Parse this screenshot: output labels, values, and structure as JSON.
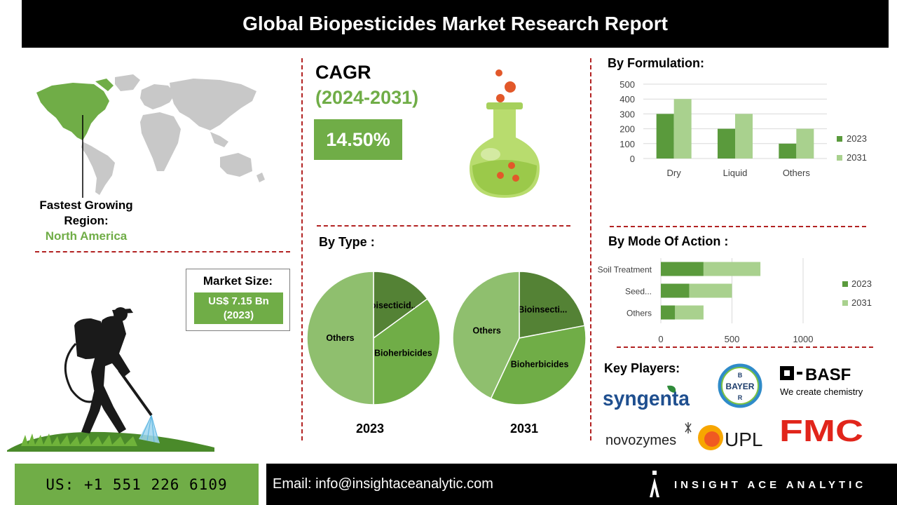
{
  "title": "Global Biopesticides Market Research Report",
  "region": {
    "label": "Fastest Growing Region:",
    "name": "North America"
  },
  "market_size": {
    "title": "Market Size:",
    "value": "US$ 7.15 Bn",
    "year": "(2023)"
  },
  "cagr": {
    "title": "CAGR",
    "period": "(2024-2031)",
    "value": "14.50%"
  },
  "formulation": {
    "title": "By Formulation:"
  },
  "type_section": {
    "title": "By Type :",
    "year_2023": "2023",
    "year_2031": "2031"
  },
  "mode_section": {
    "title": "By Mode Of Action :"
  },
  "key_players": {
    "title": "Key Players:",
    "logos": {
      "syngenta": "syngenta",
      "bayer": "BAYER",
      "basf": "BASF",
      "basf_tagline": "We create chemistry",
      "novozymes": "novozymes",
      "upl": "UPL",
      "fmc": "FMC"
    }
  },
  "footer": {
    "phone": "US: +1 551 226 6109",
    "email": "Email: info@insightaceanalytic.com",
    "brand": "INSIGHT ACE ANALYTIC"
  },
  "colors": {
    "green": "#70ad47",
    "dark_green": "#5a9a3c",
    "light_green": "#a9d18e",
    "pie_dark": "#548235",
    "pie_mid": "#70ad47",
    "pie_light": "#8fbf6e",
    "accent_red": "#b22222"
  },
  "chart_data": [
    {
      "type": "bar",
      "title": "By Formulation:",
      "categories": [
        "Dry",
        "Liquid",
        "Others"
      ],
      "series": [
        {
          "name": "2023",
          "values": [
            300,
            200,
            100
          ]
        },
        {
          "name": "2031",
          "values": [
            400,
            300,
            200
          ]
        }
      ],
      "ylim": [
        0,
        500
      ],
      "yticks": [
        "0",
        "100",
        "200",
        "300",
        "400",
        "500"
      ],
      "grid": true,
      "legend": "right"
    },
    {
      "type": "pie",
      "title": "By Type :",
      "year": "2023",
      "slices": [
        {
          "label": "Bioisecticid...",
          "value": 15
        },
        {
          "label": "Bioherbicides",
          "value": 35
        },
        {
          "label": "Others",
          "value": 50
        }
      ]
    },
    {
      "type": "pie",
      "title": "By Type :",
      "year": "2031",
      "slices": [
        {
          "label": "Bioinsecti...",
          "value": 22
        },
        {
          "label": "Bioherbicides",
          "value": 35
        },
        {
          "label": "Others",
          "value": 43
        }
      ]
    },
    {
      "type": "bar",
      "orientation": "horizontal",
      "stacked": true,
      "title": "By Mode Of Action :",
      "categories": [
        "Soil Treatment",
        "Seed...",
        "Others"
      ],
      "series": [
        {
          "name": "2023",
          "values": [
            300,
            200,
            100
          ]
        },
        {
          "name": "2031",
          "values": [
            400,
            300,
            200
          ]
        }
      ],
      "xlim": [
        0,
        1000
      ],
      "xticks": [
        "0",
        "500",
        "1000"
      ],
      "grid": true,
      "legend": "right"
    }
  ]
}
